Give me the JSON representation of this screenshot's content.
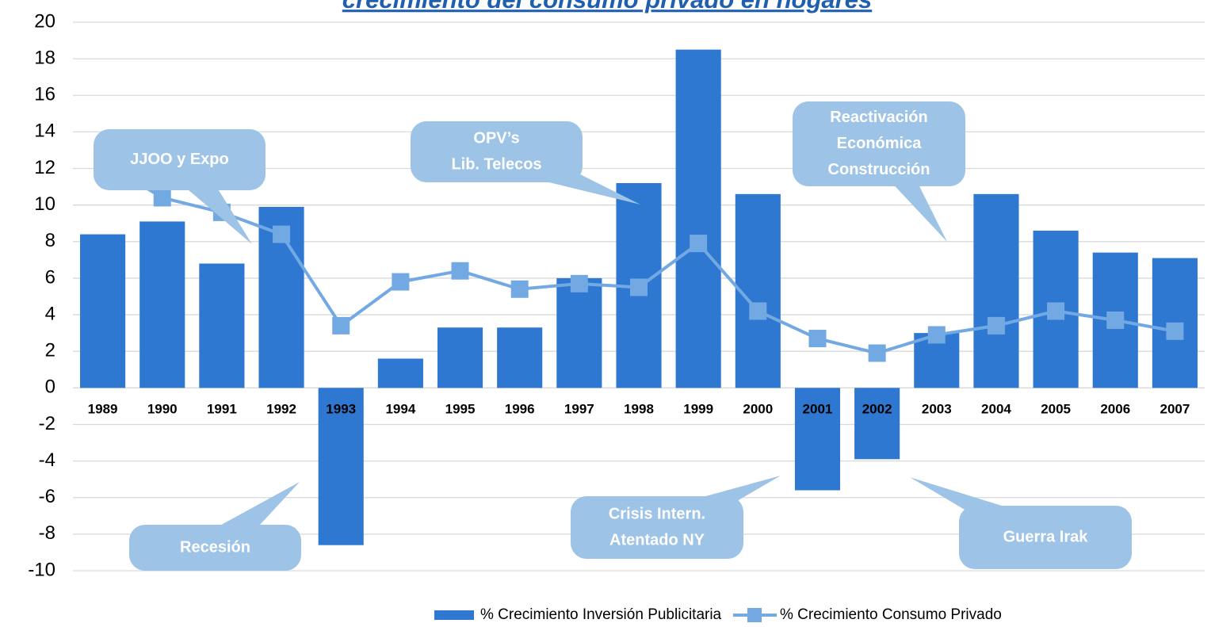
{
  "chart_data": {
    "type": "bar",
    "title": "crecimiento del consumo privado en hogares",
    "categories": [
      "1989",
      "1990",
      "1991",
      "1992",
      "1993",
      "1994",
      "1995",
      "1996",
      "1997",
      "1998",
      "1999",
      "2000",
      "2001",
      "2002",
      "2003",
      "2004",
      "2005",
      "2006",
      "2007"
    ],
    "series": [
      {
        "name": "% Crecimiento Inversión Publicitaria",
        "type": "bar",
        "color": "#2e78d2",
        "values": [
          8.4,
          9.1,
          6.8,
          9.9,
          -8.6,
          1.6,
          3.3,
          3.3,
          6.0,
          11.2,
          18.5,
          10.6,
          -5.6,
          -3.9,
          3.0,
          10.6,
          8.6,
          7.4,
          7.1
        ]
      },
      {
        "name": "% Crecimiento Consumo Privado",
        "type": "line",
        "color": "#72a9e3",
        "values": [
          12.4,
          10.4,
          9.6,
          8.4,
          3.4,
          5.8,
          6.4,
          5.4,
          5.7,
          5.5,
          7.9,
          4.2,
          2.7,
          1.9,
          2.9,
          3.4,
          4.2,
          3.7,
          3.1
        ]
      }
    ],
    "ylim": [
      -10,
      20
    ],
    "yticks": [
      -10,
      -8,
      -6,
      -4,
      -2,
      0,
      2,
      4,
      6,
      8,
      10,
      12,
      14,
      16,
      18,
      20
    ],
    "grid": true,
    "legend": "bottom-right",
    "annotations": [
      [
        "JJOO y Expo"
      ],
      [
        "OPV’s",
        "Lib. Telecos"
      ],
      [
        "Reactivación",
        "Económica",
        "Construcción"
      ],
      [
        "Recesión"
      ],
      [
        "Crisis Intern.",
        "Atentado NY"
      ],
      [
        "Guerra Irak"
      ]
    ],
    "annotation_color": "#9dc3e6"
  }
}
